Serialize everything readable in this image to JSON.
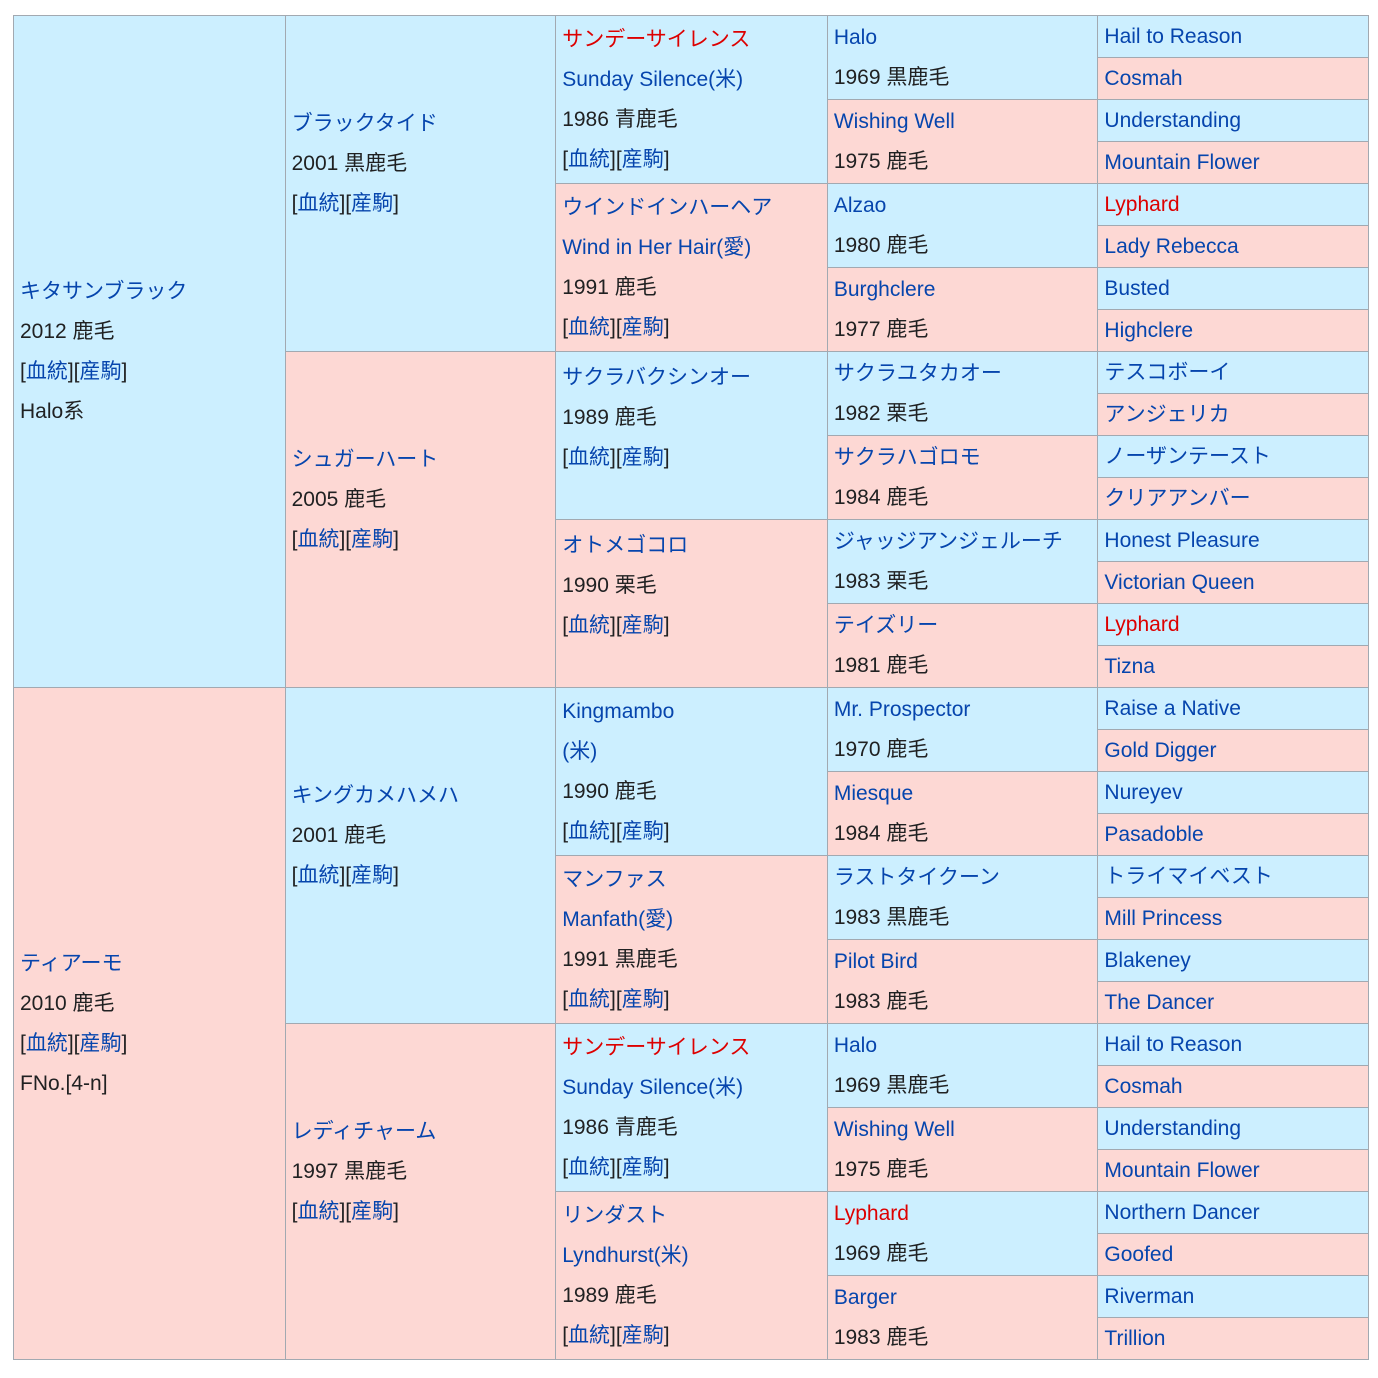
{
  "sire": {
    "name": "キタサンブラック",
    "info": "2012 鹿毛",
    "link1": "血統",
    "link2": "産駒",
    "extra": "Halo系"
  },
  "dam": {
    "name": "ティアーモ",
    "info": "2010 鹿毛",
    "link1": "血統",
    "link2": "産駒",
    "extra": "FNo.[4-n]"
  },
  "g2": [
    {
      "name": "ブラックタイド",
      "info": "2001 黒鹿毛",
      "link1": "血統",
      "link2": "産駒"
    },
    {
      "name": "シュガーハート",
      "info": "2005 鹿毛",
      "link1": "血統",
      "link2": "産駒"
    },
    {
      "name": "キングカメハメハ",
      "info": "2001 鹿毛",
      "link1": "血統",
      "link2": "産駒"
    },
    {
      "name": "レディチャーム",
      "info": "1997 黒鹿毛",
      "link1": "血統",
      "link2": "産駒"
    }
  ],
  "g3": [
    {
      "name": "サンデーサイレンス",
      "alt": "Sunday Silence(米)",
      "info": "1986 青鹿毛",
      "link1": "血統",
      "link2": "産駒"
    },
    {
      "name": "ウインドインハーヘア",
      "alt": "Wind in Her Hair(愛)",
      "info": "1991 鹿毛",
      "link1": "血統",
      "link2": "産駒"
    },
    {
      "name": "サクラバクシンオー",
      "alt": "",
      "info": "1989 鹿毛",
      "link1": "血統",
      "link2": "産駒"
    },
    {
      "name": "オトメゴコロ",
      "alt": "",
      "info": "1990 栗毛",
      "link1": "血統",
      "link2": "産駒"
    },
    {
      "name": "Kingmambo",
      "alt": "(米)",
      "info": "1990 鹿毛",
      "link1": "血統",
      "link2": "産駒"
    },
    {
      "name": "マンファス",
      "alt": "Manfath(愛)",
      "info": "1991 黒鹿毛",
      "link1": "血統",
      "link2": "産駒"
    },
    {
      "name": "サンデーサイレンス",
      "alt": "Sunday Silence(米)",
      "info": "1986 青鹿毛",
      "link1": "血統",
      "link2": "産駒"
    },
    {
      "name": "リンダスト",
      "alt": "Lyndhurst(米)",
      "info": "1989 鹿毛",
      "link1": "血統",
      "link2": "産駒"
    }
  ],
  "g4": [
    {
      "name": "Halo",
      "info": "1969 黒鹿毛"
    },
    {
      "name": "Wishing Well",
      "info": "1975 鹿毛"
    },
    {
      "name": "Alzao",
      "info": "1980 鹿毛"
    },
    {
      "name": "Burghclere",
      "info": "1977 鹿毛"
    },
    {
      "name": "サクラユタカオー",
      "info": "1982 栗毛"
    },
    {
      "name": "サクラハゴロモ",
      "info": "1984 鹿毛"
    },
    {
      "name": "ジャッジアンジェルーチ",
      "info": "1983 栗毛"
    },
    {
      "name": "テイズリー",
      "info": "1981 鹿毛"
    },
    {
      "name": "Mr. Prospector",
      "info": "1970 鹿毛"
    },
    {
      "name": "Miesque",
      "info": "1984 鹿毛"
    },
    {
      "name": "ラストタイクーン",
      "info": "1983 黒鹿毛"
    },
    {
      "name": "Pilot Bird",
      "info": "1983 鹿毛"
    },
    {
      "name": "Halo",
      "info": "1969 黒鹿毛"
    },
    {
      "name": "Wishing Well",
      "info": "1975 鹿毛"
    },
    {
      "name": "Lyphard",
      "info": "1969 鹿毛"
    },
    {
      "name": "Barger",
      "info": "1983 鹿毛"
    }
  ],
  "g5": [
    "Hail to Reason",
    "Cosmah",
    "Understanding",
    "Mountain Flower",
    "Lyphard",
    "Lady Rebecca",
    "Busted",
    "Highclere",
    "テスコボーイ",
    "アンジェリカ",
    "ノーザンテースト",
    "クリアアンバー",
    "Honest Pleasure",
    "Victorian Queen",
    "Lyphard",
    "Tizna",
    "Raise a Native",
    "Gold Digger",
    "Nureyev",
    "Pasadoble",
    "トライマイベスト",
    "Mill Princess",
    "Blakeney",
    "The Dancer",
    "Hail to Reason",
    "Cosmah",
    "Understanding",
    "Mountain Flower",
    "Northern Dancer",
    "Goofed",
    "Riverman",
    "Trillion"
  ],
  "colors": {
    "male_bg": "#ccefff",
    "female_bg": "#fdd8d4",
    "link": "#0645ad",
    "highlight": "#dd0000",
    "border": "#a2a9b1"
  }
}
